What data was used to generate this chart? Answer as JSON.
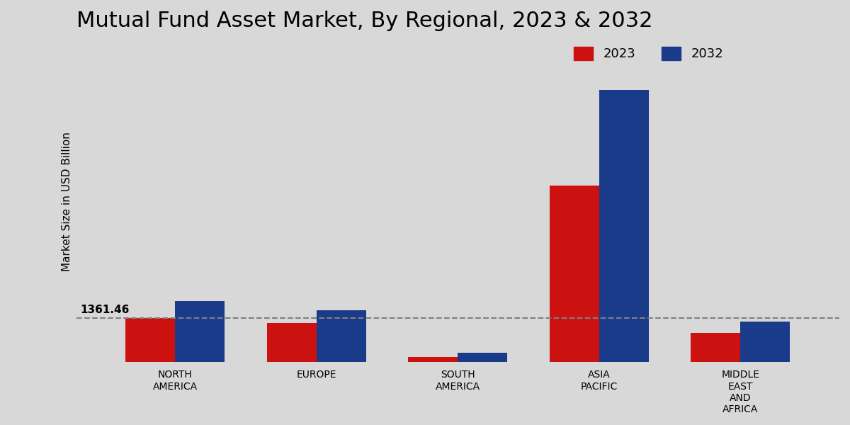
{
  "title": "Mutual Fund Asset Market, By Regional, 2023 & 2032",
  "ylabel": "Market Size in USD Billion",
  "categories": [
    "NORTH\nAMERICA",
    "EUROPE",
    "SOUTH\nAMERICA",
    "ASIA\nPACIFIC",
    "MIDDLE\nEAST\nAND\nAFRICA"
  ],
  "values_2023": [
    1361.46,
    1200,
    150,
    5500,
    900
  ],
  "values_2032": [
    1900,
    1600,
    280,
    8500,
    1250
  ],
  "color_2023": "#cc1111",
  "color_2032": "#1a3a8a",
  "annotation_text": "1361.46",
  "annotation_category": 0,
  "legend_labels": [
    "2023",
    "2032"
  ],
  "dashed_line_y": 1361.46,
  "background_color": "#d8d8d8",
  "title_fontsize": 22,
  "label_fontsize": 11,
  "tick_fontsize": 10,
  "bar_width": 0.35,
  "ylim_max": 10000,
  "ylim_min": 0
}
